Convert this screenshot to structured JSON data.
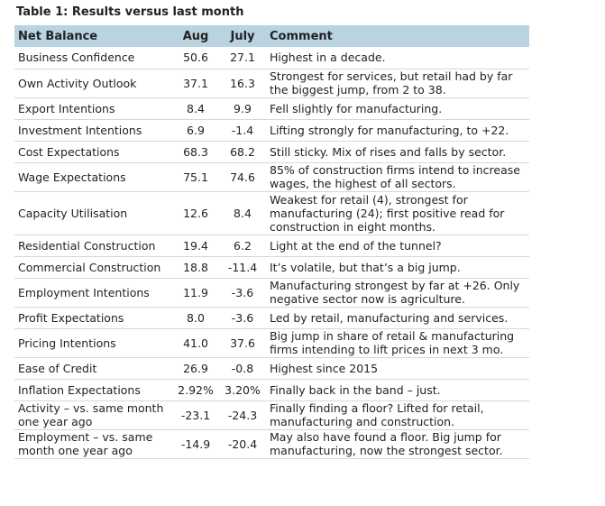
{
  "title": "Table 1: Results versus last month",
  "headers": [
    "Net Balance",
    "Aug",
    "July",
    "Comment"
  ],
  "rows": [
    {
      "name": "Business Confidence",
      "aug": "50.6",
      "july": "27.1",
      "comment": "Highest in a decade."
    },
    {
      "name": "Own Activity Outlook",
      "aug": "37.1",
      "july": "16.3",
      "comment": "Strongest for services, but retail had by far the biggest jump, from 2 to 38."
    },
    {
      "name": "Export Intentions",
      "aug": "8.4",
      "july": "9.9",
      "comment": "Fell slightly for manufacturing."
    },
    {
      "name": "Investment Intentions",
      "aug": "6.9",
      "july": "-1.4",
      "comment": "Lifting strongly for manufacturing, to +22."
    },
    {
      "name": "Cost Expectations",
      "aug": "68.3",
      "july": "68.2",
      "comment": "Still sticky. Mix of rises and falls by sector."
    },
    {
      "name": "Wage Expectations",
      "aug": "75.1",
      "july": "74.6",
      "comment": "85% of construction firms intend to increase wages, the highest of all sectors."
    },
    {
      "name": "Capacity Utilisation",
      "aug": "12.6",
      "july": "8.4",
      "comment": "Weakest for retail (4), strongest for manufacturing (24); first positive read for construction in eight months."
    },
    {
      "name": "Residential Construction",
      "aug": "19.4",
      "july": "6.2",
      "comment": "Light at the end of the tunnel?"
    },
    {
      "name": "Commercial Construction",
      "aug": "18.8",
      "july": "-11.4",
      "comment": "It’s volatile, but that’s a big jump."
    },
    {
      "name": "Employment Intentions",
      "aug": "11.9",
      "july": "-3.6",
      "comment": "Manufacturing strongest by far at +26. Only negative sector now is agriculture."
    },
    {
      "name": "Profit Expectations",
      "aug": "8.0",
      "july": "-3.6",
      "comment": "Led by retail, manufacturing and services."
    },
    {
      "name": "Pricing Intentions",
      "aug": "41.0",
      "july": "37.6",
      "comment": "Big jump in share of retail & manufacturing firms intending to lift prices in next 3 mo."
    },
    {
      "name": "Ease of Credit",
      "aug": "26.9",
      "july": "-0.8",
      "comment": "Highest since 2015"
    },
    {
      "name": "Inflation Expectations",
      "aug": "2.92%",
      "july": "3.20%",
      "comment": "Finally back in the band – just."
    },
    {
      "name": "Activity – vs. same month one year ago",
      "aug": "-23.1",
      "july": "-24.3",
      "comment": "Finally finding a floor? Lifted for retail, manufacturing and construction."
    },
    {
      "name": "Employment – vs. same month one year ago",
      "aug": "-14.9",
      "july": "-20.4",
      "comment": "May also have found a floor. Big jump for manufacturing, now the strongest sector."
    }
  ]
}
